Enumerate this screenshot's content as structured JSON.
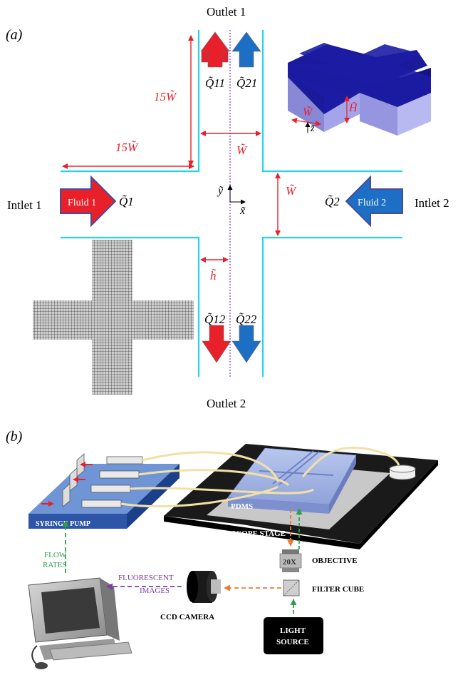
{
  "panel_a": {
    "label": "(a)",
    "outlet1": "Outlet 1",
    "outlet2": "Outlet 2",
    "inlet1": "Intlet 1",
    "inlet2": "Intlet 2",
    "fluid1": "Fluid 1",
    "fluid2": "Fluid 2",
    "dim_15w_vertical": "15W̃",
    "dim_15w_horizontal": "15W̃",
    "dim_w_top": "W̃",
    "dim_w_right": "W̃",
    "dim_h": "h̃",
    "q_inlet1": "Q̃1",
    "q_inlet2": "Q̃2",
    "q11": "Q̃11",
    "q21": "Q̃21",
    "q12": "Q̃12",
    "q22": "Q̃22",
    "axis_y": "ỹ",
    "axis_x": "x̃",
    "inset_w": "W̃",
    "inset_h": "H̃",
    "inset_z": "z̃",
    "colors": {
      "channel_wall": "#27d3e8",
      "red": "#e8202a",
      "blue": "#1c6fc4",
      "dim_red": "#e8202a",
      "centerline": "#8a2be2",
      "block_top": "#1a1a9a",
      "block_side": "#9a9ae6"
    }
  },
  "panel_b": {
    "label": "(b)",
    "syringe_pump": "SYRINGE PUMP",
    "pdms": "PDMS",
    "microscope_stage": "MICROSCOPE STAGE",
    "objective": "OBJECTIVE",
    "objective_mag": "20X",
    "filter_cube": "FILTER CUBE",
    "light_source_line1": "LIGHT",
    "light_source_line2": "SOURCE",
    "ccd_camera": "CCD CAMERA",
    "flow_rates_line1": "FLOW",
    "flow_rates_line2": "RATES",
    "fluorescent_line1": "FLUORESCENT",
    "fluorescent_line2": "IMAGES",
    "colors": {
      "pump_top": "#6f95d6",
      "stage": "#1a1a1a",
      "green_dash": "#2e9e4a",
      "orange_dash": "#ee7a2f",
      "purple_dash": "#7b3fa0",
      "tubing": "#f3e0a8"
    }
  }
}
